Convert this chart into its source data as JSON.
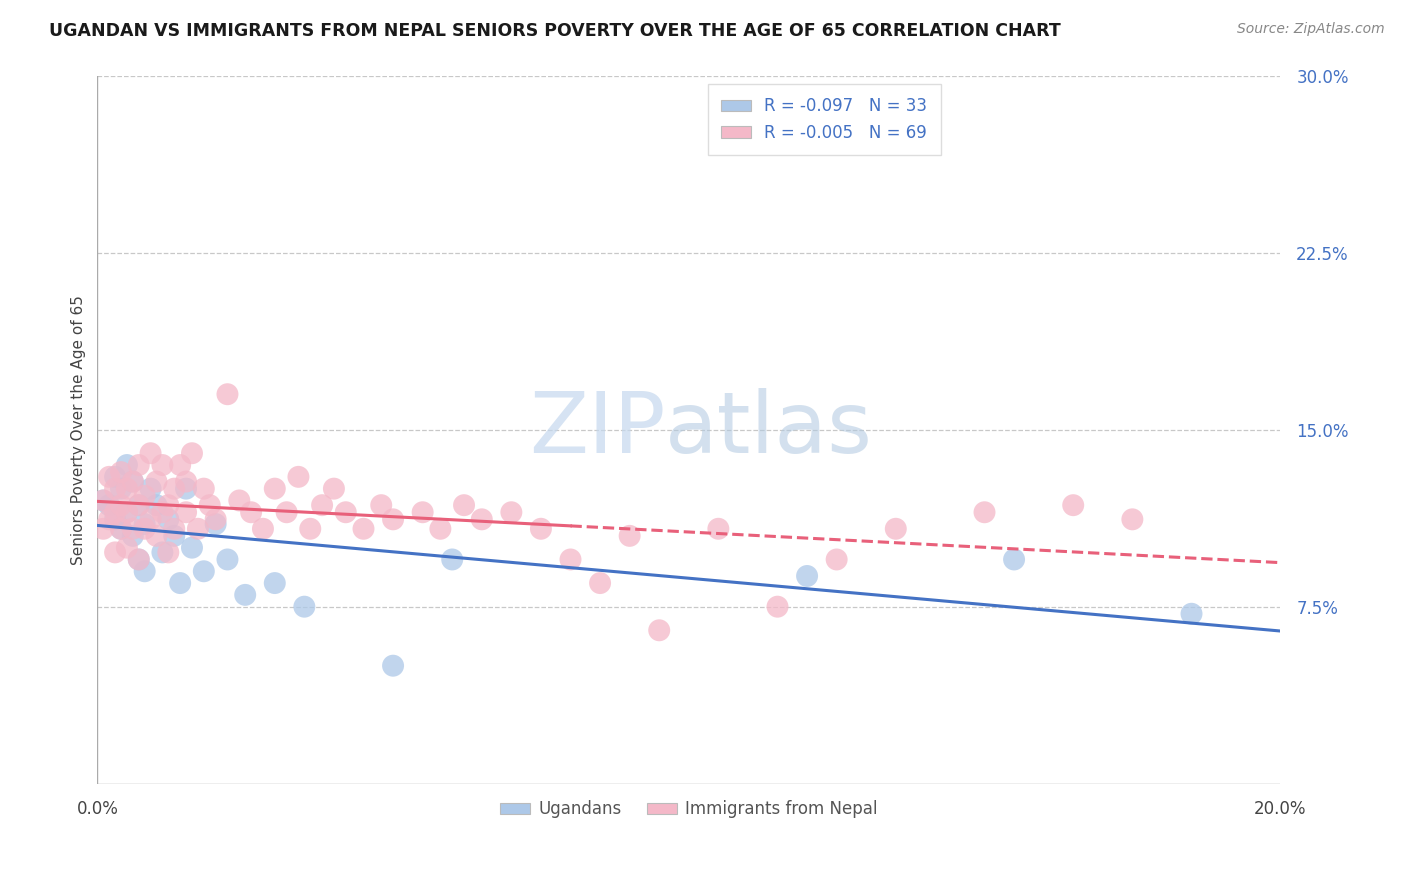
{
  "title": "UGANDAN VS IMMIGRANTS FROM NEPAL SENIORS POVERTY OVER THE AGE OF 65 CORRELATION CHART",
  "source": "Source: ZipAtlas.com",
  "ylabel": "Seniors Poverty Over the Age of 65",
  "xlim": [
    0.0,
    0.2
  ],
  "ylim": [
    0.0,
    0.3
  ],
  "ugandan_R": -0.097,
  "ugandan_N": 33,
  "nepal_R": -0.005,
  "nepal_N": 69,
  "ugandan_color": "#adc8e8",
  "nepal_color": "#f4b8c8",
  "ugandan_line_color": "#4472c4",
  "nepal_line_color": "#e8607a",
  "legend_label_ugandan": "Ugandans",
  "legend_label_nepal": "Immigrants from Nepal",
  "ugandan_x": [
    0.001,
    0.002,
    0.003,
    0.003,
    0.004,
    0.004,
    0.005,
    0.005,
    0.006,
    0.006,
    0.007,
    0.007,
    0.008,
    0.008,
    0.009,
    0.01,
    0.011,
    0.012,
    0.013,
    0.014,
    0.015,
    0.016,
    0.018,
    0.02,
    0.022,
    0.025,
    0.03,
    0.035,
    0.05,
    0.06,
    0.12,
    0.155,
    0.185
  ],
  "ugandan_y": [
    0.12,
    0.118,
    0.13,
    0.112,
    0.125,
    0.108,
    0.135,
    0.115,
    0.128,
    0.105,
    0.118,
    0.095,
    0.11,
    0.09,
    0.125,
    0.118,
    0.098,
    0.112,
    0.105,
    0.085,
    0.125,
    0.1,
    0.09,
    0.11,
    0.095,
    0.08,
    0.085,
    0.075,
    0.05,
    0.095,
    0.088,
    0.095,
    0.072
  ],
  "nepal_x": [
    0.001,
    0.001,
    0.002,
    0.002,
    0.003,
    0.003,
    0.003,
    0.004,
    0.004,
    0.004,
    0.005,
    0.005,
    0.005,
    0.006,
    0.006,
    0.007,
    0.007,
    0.007,
    0.008,
    0.008,
    0.009,
    0.009,
    0.01,
    0.01,
    0.011,
    0.011,
    0.012,
    0.012,
    0.013,
    0.013,
    0.014,
    0.015,
    0.015,
    0.016,
    0.017,
    0.018,
    0.019,
    0.02,
    0.022,
    0.024,
    0.026,
    0.028,
    0.03,
    0.032,
    0.034,
    0.036,
    0.038,
    0.04,
    0.042,
    0.045,
    0.048,
    0.05,
    0.055,
    0.058,
    0.062,
    0.065,
    0.07,
    0.075,
    0.08,
    0.085,
    0.09,
    0.095,
    0.105,
    0.115,
    0.125,
    0.135,
    0.15,
    0.165,
    0.175
  ],
  "nepal_y": [
    0.12,
    0.108,
    0.13,
    0.112,
    0.125,
    0.115,
    0.098,
    0.132,
    0.108,
    0.118,
    0.125,
    0.115,
    0.1,
    0.128,
    0.108,
    0.135,
    0.118,
    0.095,
    0.122,
    0.108,
    0.14,
    0.112,
    0.128,
    0.105,
    0.135,
    0.115,
    0.118,
    0.098,
    0.125,
    0.108,
    0.135,
    0.128,
    0.115,
    0.14,
    0.108,
    0.125,
    0.118,
    0.112,
    0.165,
    0.12,
    0.115,
    0.108,
    0.125,
    0.115,
    0.13,
    0.108,
    0.118,
    0.125,
    0.115,
    0.108,
    0.118,
    0.112,
    0.115,
    0.108,
    0.118,
    0.112,
    0.115,
    0.108,
    0.095,
    0.085,
    0.105,
    0.065,
    0.108,
    0.075,
    0.095,
    0.108,
    0.115,
    0.118,
    0.112
  ],
  "grid_yticks": [
    0.075,
    0.15,
    0.225,
    0.3
  ],
  "right_ytick_labels": [
    "7.5%",
    "15.0%",
    "22.5%",
    "30.0%"
  ]
}
